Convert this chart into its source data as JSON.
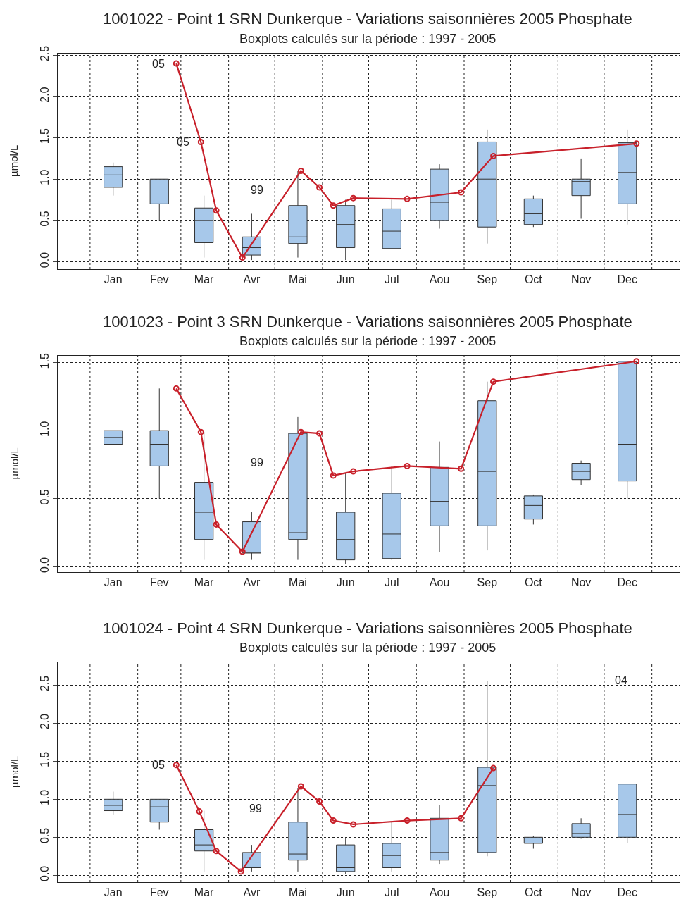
{
  "chart_data": [
    {
      "type": "box",
      "title": "1001022 - Point 1 SRN Dunkerque - Variations saisonnières 2005 Phosphate",
      "subtitle": "Boxplots calculés sur la période : 1997 - 2005",
      "ylabel": "µmol/L",
      "xlim": [
        "2004-12-11",
        "2006-01-19"
      ],
      "ylim": [
        -0.09,
        2.52
      ],
      "xticks": [
        {
          "value": "2005-01-16",
          "label": "Jan"
        },
        {
          "value": "2005-02-15",
          "label": "Fev"
        },
        {
          "value": "2005-03-16",
          "label": "Mar"
        },
        {
          "value": "2005-04-16",
          "label": "Avr"
        },
        {
          "value": "2005-05-16",
          "label": "Mai"
        },
        {
          "value": "2005-06-16",
          "label": "Jun"
        },
        {
          "value": "2005-07-16",
          "label": "Jul"
        },
        {
          "value": "2005-08-16",
          "label": "Aou"
        },
        {
          "value": "2005-09-16",
          "label": "Sep"
        },
        {
          "value": "2005-10-16",
          "label": "Oct"
        },
        {
          "value": "2005-11-16",
          "label": "Nov"
        },
        {
          "value": "2005-12-16",
          "label": "Dec"
        }
      ],
      "yticks": [
        {
          "value": 0,
          "label": "0.0"
        },
        {
          "value": 0.5,
          "label": "0.5"
        },
        {
          "value": 1,
          "label": "1.0"
        },
        {
          "value": 1.5,
          "label": "1.5"
        },
        {
          "value": 2,
          "label": "2.0"
        },
        {
          "value": 2.5,
          "label": "2.5"
        }
      ],
      "grid": "y",
      "ref_lines": [
        {
          "axis": "x",
          "value": "2005-01-01",
          "line_style": "dotted"
        },
        {
          "axis": "x",
          "value": "2005-02-01",
          "line_style": "dotted"
        },
        {
          "axis": "x",
          "value": "2005-03-01",
          "line_style": "dotted"
        },
        {
          "axis": "x",
          "value": "2005-04-01",
          "line_style": "dotted"
        },
        {
          "axis": "x",
          "value": "2005-05-01",
          "line_style": "dotted"
        },
        {
          "axis": "x",
          "value": "2005-06-01",
          "line_style": "dotted"
        },
        {
          "axis": "x",
          "value": "2005-07-01",
          "line_style": "dotted"
        },
        {
          "axis": "x",
          "value": "2005-08-01",
          "line_style": "dotted"
        },
        {
          "axis": "x",
          "value": "2005-09-01",
          "line_style": "dotted"
        },
        {
          "axis": "x",
          "value": "2005-10-01",
          "line_style": "dotted"
        },
        {
          "axis": "x",
          "value": "2005-11-01",
          "line_style": "dotted"
        },
        {
          "axis": "x",
          "value": "2005-12-01",
          "line_style": "dotted"
        },
        {
          "axis": "x",
          "value": "2006-01-01",
          "line_style": "dotted"
        }
      ],
      "annotations": [
        {
          "text": "05",
          "x": "2005-02-26",
          "y": 2.4
        },
        {
          "text": "05",
          "x": "2005-03-14",
          "y": 1.45
        },
        "99"
      ],
      "series": [
        {
          "color": "#a7c8ea",
          "x": [
            "2005-01-16",
            "2005-02-15",
            "2005-03-16",
            "2005-04-16",
            "2005-05-16",
            "2005-06-16",
            "2005-07-16",
            "2005-08-16",
            "2005-09-16",
            "2005-10-16",
            "2005-11-16",
            "2005-12-16"
          ],
          "boxes": [
            {
              "low": 0.8,
              "q1": 0.9,
              "median": 1.05,
              "q3": 1.15,
              "high": 1.2
            },
            {
              "low": 0.5,
              "q1": 0.7,
              "median": 1.0,
              "q3": 1.0,
              "high": 1.0
            },
            {
              "low": 0.05,
              "q1": 0.23,
              "median": 0.5,
              "q3": 0.65,
              "high": 0.8
            },
            {
              "low": 0.02,
              "q1": 0.08,
              "median": 0.17,
              "q3": 0.3,
              "high": 0.58
            },
            {
              "low": 0.05,
              "q1": 0.22,
              "median": 0.3,
              "q3": 0.68,
              "high": 1.1
            },
            {
              "low": 0.02,
              "q1": 0.17,
              "median": 0.45,
              "q3": 0.68,
              "high": 0.75
            },
            {
              "low": 0.16,
              "q1": 0.16,
              "median": 0.37,
              "q3": 0.64,
              "high": 0.75
            },
            {
              "low": 0.4,
              "q1": 0.5,
              "median": 0.72,
              "q3": 1.12,
              "high": 1.18
            },
            {
              "low": 0.22,
              "q1": 0.42,
              "median": 1.0,
              "q3": 1.45,
              "high": 1.6
            },
            {
              "low": 0.42,
              "q1": 0.45,
              "median": 0.58,
              "q3": 0.76,
              "high": 0.8
            },
            {
              "low": 0.52,
              "q1": 0.8,
              "median": 0.97,
              "q3": 1.0,
              "high": 1.25
            },
            {
              "low": 0.45,
              "q1": 0.7,
              "median": 1.08,
              "q3": 1.44,
              "high": 1.6
            }
          ]
        },
        {
          "type": "line",
          "color": "#c8202a",
          "marker": "circle",
          "x": [
            "2005-02-26",
            "2005-03-14",
            "2005-03-24",
            "2005-04-10",
            "2005-05-18",
            "2005-05-30",
            "2005-06-08",
            "2005-06-21",
            "2005-07-26",
            "2005-08-30",
            "2005-09-20",
            "2005-12-22"
          ],
          "values": [
            2.4,
            1.45,
            0.62,
            0.05,
            1.1,
            0.9,
            0.68,
            0.77,
            0.76,
            0.84,
            1.28,
            1.43
          ]
        }
      ]
    },
    {
      "type": "box",
      "title": "1001023 - Point 3 SRN Dunkerque - Variations saisonnières 2005 Phosphate",
      "subtitle": "Boxplots calculés sur la période : 1997 - 2005",
      "ylabel": "µmol/L",
      "xlim": [
        "2004-12-11",
        "2006-01-19"
      ],
      "ylim": [
        -0.04,
        1.55
      ],
      "xticks": [
        {
          "value": "2005-01-16",
          "label": "Jan"
        },
        {
          "value": "2005-02-15",
          "label": "Fev"
        },
        {
          "value": "2005-03-16",
          "label": "Mar"
        },
        {
          "value": "2005-04-16",
          "label": "Avr"
        },
        {
          "value": "2005-05-16",
          "label": "Mai"
        },
        {
          "value": "2005-06-16",
          "label": "Jun"
        },
        {
          "value": "2005-07-16",
          "label": "Jul"
        },
        {
          "value": "2005-08-16",
          "label": "Aou"
        },
        {
          "value": "2005-09-16",
          "label": "Sep"
        },
        {
          "value": "2005-10-16",
          "label": "Oct"
        },
        {
          "value": "2005-11-16",
          "label": "Nov"
        },
        {
          "value": "2005-12-16",
          "label": "Dec"
        }
      ],
      "yticks": [
        {
          "value": 0,
          "label": "0.0"
        },
        {
          "value": 0.5,
          "label": "0.5"
        },
        {
          "value": 1,
          "label": "1.0"
        },
        {
          "value": 1.5,
          "label": "1.5"
        }
      ],
      "grid": "y",
      "ref_lines": [
        {
          "axis": "x",
          "value": "2005-01-01",
          "line_style": "dotted"
        },
        {
          "axis": "x",
          "value": "2005-02-01",
          "line_style": "dotted"
        },
        {
          "axis": "x",
          "value": "2005-03-01",
          "line_style": "dotted"
        },
        {
          "axis": "x",
          "value": "2005-04-01",
          "line_style": "dotted"
        },
        {
          "axis": "x",
          "value": "2005-05-01",
          "line_style": "dotted"
        },
        {
          "axis": "x",
          "value": "2005-06-01",
          "line_style": "dotted"
        },
        {
          "axis": "x",
          "value": "2005-07-01",
          "line_style": "dotted"
        },
        {
          "axis": "x",
          "value": "2005-08-01",
          "line_style": "dotted"
        },
        {
          "axis": "x",
          "value": "2005-09-01",
          "line_style": "dotted"
        },
        {
          "axis": "x",
          "value": "2005-10-01",
          "line_style": "dotted"
        },
        {
          "axis": "x",
          "value": "2005-11-01",
          "line_style": "dotted"
        },
        {
          "axis": "x",
          "value": "2005-12-01",
          "line_style": "dotted"
        },
        {
          "axis": "x",
          "value": "2006-01-01",
          "line_style": "dotted"
        }
      ],
      "annotations": [
        "99"
      ],
      "series": [
        {
          "color": "#a7c8ea",
          "x": [
            "2005-01-16",
            "2005-02-15",
            "2005-03-16",
            "2005-04-16",
            "2005-05-16",
            "2005-06-16",
            "2005-07-16",
            "2005-08-16",
            "2005-09-16",
            "2005-10-16",
            "2005-11-16",
            "2005-12-16"
          ],
          "boxes": [
            {
              "low": 0.9,
              "q1": 0.9,
              "median": 0.95,
              "q3": 1.0,
              "high": 1.0
            },
            {
              "low": 0.5,
              "q1": 0.74,
              "median": 0.9,
              "q3": 1.0,
              "high": 1.31
            },
            {
              "low": 0.05,
              "q1": 0.2,
              "median": 0.4,
              "q3": 0.62,
              "high": 0.99
            },
            {
              "low": 0.05,
              "q1": 0.1,
              "median": 0.1,
              "q3": 0.33,
              "high": 0.4
            },
            {
              "low": 0.05,
              "q1": 0.2,
              "median": 0.25,
              "q3": 0.98,
              "high": 1.1
            },
            {
              "low": 0.02,
              "q1": 0.05,
              "median": 0.2,
              "q3": 0.4,
              "high": 0.69
            },
            {
              "low": 0.05,
              "q1": 0.06,
              "median": 0.24,
              "q3": 0.54,
              "high": 0.74
            },
            {
              "low": 0.11,
              "q1": 0.3,
              "median": 0.48,
              "q3": 0.73,
              "high": 0.92
            },
            {
              "low": 0.12,
              "q1": 0.3,
              "median": 0.7,
              "q3": 1.22,
              "high": 1.36
            },
            {
              "low": 0.31,
              "q1": 0.35,
              "median": 0.45,
              "q3": 0.52,
              "high": 0.53
            },
            {
              "low": 0.6,
              "q1": 0.64,
              "median": 0.7,
              "q3": 0.76,
              "high": 0.78
            },
            {
              "low": 0.5,
              "q1": 0.63,
              "median": 0.9,
              "q3": 1.51,
              "high": 1.51
            }
          ]
        },
        {
          "type": "line",
          "color": "#c8202a",
          "marker": "circle",
          "x": [
            "2005-02-26",
            "2005-03-14",
            "2005-03-24",
            "2005-04-10",
            "2005-05-18",
            "2005-05-30",
            "2005-06-08",
            "2005-06-21",
            "2005-07-26",
            "2005-08-30",
            "2005-09-20",
            "2005-12-22"
          ],
          "values": [
            1.31,
            0.99,
            0.31,
            0.11,
            0.99,
            0.98,
            0.67,
            0.7,
            0.74,
            0.72,
            1.36,
            1.51
          ]
        }
      ]
    },
    {
      "type": "box",
      "title": "1001024 - Point 4 SRN Dunkerque - Variations saisonnières 2005 Phosphate",
      "subtitle": "Boxplots calculés sur la période : 1997 - 2005",
      "ylabel": "µmol/L",
      "xlim": [
        "2004-12-11",
        "2006-01-19"
      ],
      "ylim": [
        -0.09,
        2.8
      ],
      "xticks": [
        {
          "value": "2005-01-16",
          "label": "Jan"
        },
        {
          "value": "2005-02-15",
          "label": "Fev"
        },
        {
          "value": "2005-03-16",
          "label": "Mar"
        },
        {
          "value": "2005-04-16",
          "label": "Avr"
        },
        {
          "value": "2005-05-16",
          "label": "Mai"
        },
        {
          "value": "2005-06-16",
          "label": "Jun"
        },
        {
          "value": "2005-07-16",
          "label": "Jul"
        },
        {
          "value": "2005-08-16",
          "label": "Aou"
        },
        {
          "value": "2005-09-16",
          "label": "Sep"
        },
        {
          "value": "2005-10-16",
          "label": "Oct"
        },
        {
          "value": "2005-11-16",
          "label": "Nov"
        },
        {
          "value": "2005-12-16",
          "label": "Dec"
        }
      ],
      "yticks": [
        {
          "value": 0,
          "label": "0.0"
        },
        {
          "value": 0.5,
          "label": "0.5"
        },
        {
          "value": 1,
          "label": "1.0"
        },
        {
          "value": 1.5,
          "label": "1.5"
        },
        {
          "value": 2,
          "label": "2.0"
        },
        {
          "value": 2.5,
          "label": "2.5"
        }
      ],
      "grid": "y",
      "ref_lines": [
        {
          "axis": "x",
          "value": "2005-01-01",
          "line_style": "dotted"
        },
        {
          "axis": "x",
          "value": "2005-02-01",
          "line_style": "dotted"
        },
        {
          "axis": "x",
          "value": "2005-03-01",
          "line_style": "dotted"
        },
        {
          "axis": "x",
          "value": "2005-04-01",
          "line_style": "dotted"
        },
        {
          "axis": "x",
          "value": "2005-05-01",
          "line_style": "dotted"
        },
        {
          "axis": "x",
          "value": "2005-06-01",
          "line_style": "dotted"
        },
        {
          "axis": "x",
          "value": "2005-07-01",
          "line_style": "dotted"
        },
        {
          "axis": "x",
          "value": "2005-08-01",
          "line_style": "dotted"
        },
        {
          "axis": "x",
          "value": "2005-09-01",
          "line_style": "dotted"
        },
        {
          "axis": "x",
          "value": "2005-10-01",
          "line_style": "dotted"
        },
        {
          "axis": "x",
          "value": "2005-11-01",
          "line_style": "dotted"
        },
        {
          "axis": "x",
          "value": "2005-12-01",
          "line_style": "dotted"
        },
        {
          "axis": "x",
          "value": "2006-01-01",
          "line_style": "dotted"
        }
      ],
      "annotations": [
        {
          "text": "05",
          "x": "2005-02-26",
          "y": 1.45
        },
        "99",
        "04"
      ],
      "series": [
        {
          "color": "#a7c8ea",
          "x": [
            "2005-01-16",
            "2005-02-15",
            "2005-03-16",
            "2005-04-16",
            "2005-05-16",
            "2005-06-16",
            "2005-07-16",
            "2005-08-16",
            "2005-09-16",
            "2005-10-16",
            "2005-11-16",
            "2005-12-16"
          ],
          "boxes": [
            {
              "low": 0.8,
              "q1": 0.85,
              "median": 0.92,
              "q3": 1.0,
              "high": 1.1
            },
            {
              "low": 0.6,
              "q1": 0.7,
              "median": 0.9,
              "q3": 1.0,
              "high": 1.0
            },
            {
              "low": 0.05,
              "q1": 0.32,
              "median": 0.4,
              "q3": 0.6,
              "high": 0.85
            },
            {
              "low": 0.05,
              "q1": 0.1,
              "median": 0.1,
              "q3": 0.3,
              "high": 0.4
            },
            {
              "low": 0.05,
              "q1": 0.2,
              "median": 0.28,
              "q3": 0.7,
              "high": 1.15
            },
            {
              "low": 0.02,
              "q1": 0.05,
              "median": 0.1,
              "q3": 0.4,
              "high": 0.5
            },
            {
              "low": 0.05,
              "q1": 0.1,
              "median": 0.26,
              "q3": 0.42,
              "high": 0.7
            },
            {
              "low": 0.15,
              "q1": 0.2,
              "median": 0.3,
              "q3": 0.75,
              "high": 0.92
            },
            {
              "low": 0.25,
              "q1": 0.3,
              "median": 1.18,
              "q3": 1.42,
              "high": 2.55
            },
            {
              "low": 0.35,
              "q1": 0.42,
              "median": 0.5,
              "q3": 0.5,
              "high": 0.52
            },
            {
              "low": 0.48,
              "q1": 0.5,
              "median": 0.55,
              "q3": 0.68,
              "high": 0.75
            },
            {
              "low": 0.42,
              "q1": 0.5,
              "median": 0.8,
              "q3": 1.2,
              "high": 1.2
            }
          ]
        },
        {
          "type": "line",
          "color": "#c8202a",
          "marker": "circle",
          "x": [
            "2005-02-26",
            "2005-03-13",
            "2005-03-24",
            "2005-04-09",
            "2005-05-18",
            "2005-05-30",
            "2005-06-08",
            "2005-06-21",
            "2005-07-26",
            "2005-08-30",
            "2005-09-20"
          ],
          "values": [
            1.45,
            0.84,
            0.32,
            0.05,
            1.17,
            0.97,
            0.72,
            0.67,
            0.72,
            0.75,
            1.41
          ]
        }
      ]
    }
  ]
}
